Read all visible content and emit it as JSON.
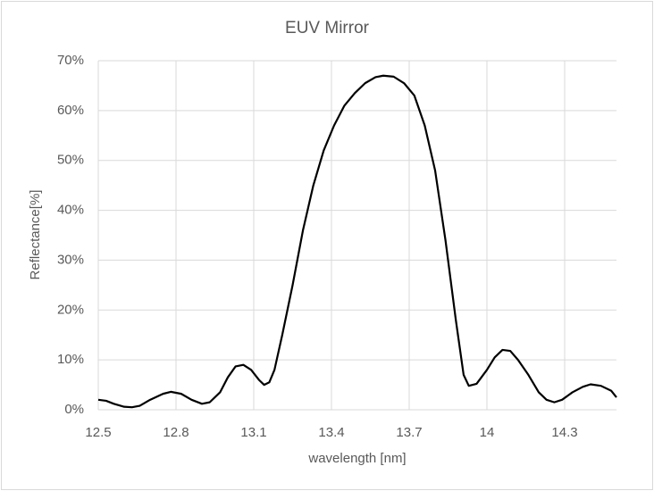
{
  "chart_data": {
    "type": "line",
    "title": "EUV Mirror",
    "x_label": "wavelength [nm]",
    "y_label": "Reflectance[%]",
    "x": [
      12.5,
      12.53,
      12.56,
      12.6,
      12.63,
      12.66,
      12.7,
      12.75,
      12.78,
      12.82,
      12.86,
      12.9,
      12.93,
      12.97,
      13.0,
      13.03,
      13.06,
      13.09,
      13.12,
      13.14,
      13.16,
      13.18,
      13.21,
      13.25,
      13.29,
      13.33,
      13.37,
      13.41,
      13.45,
      13.49,
      13.53,
      13.57,
      13.6,
      13.64,
      13.68,
      13.72,
      13.76,
      13.8,
      13.84,
      13.88,
      13.91,
      13.93,
      13.96,
      14.0,
      14.03,
      14.06,
      14.09,
      14.12,
      14.16,
      14.2,
      14.23,
      14.26,
      14.29,
      14.33,
      14.37,
      14.4,
      14.44,
      14.48,
      14.5
    ],
    "series": [
      {
        "name": "Reflectance",
        "color": "#000000",
        "values": [
          2,
          1.8,
          1.2,
          0.6,
          0.5,
          0.8,
          2,
          3.2,
          3.6,
          3.2,
          2,
          1.2,
          1.5,
          3.5,
          6.5,
          8.7,
          9,
          8,
          6,
          5,
          5.5,
          8,
          15,
          25,
          36,
          45,
          52,
          57,
          61,
          63.5,
          65.5,
          66.7,
          67,
          66.8,
          65.5,
          63,
          57,
          48,
          34,
          18,
          7,
          4.8,
          5.2,
          8,
          10.5,
          12,
          11.8,
          10,
          7,
          3.5,
          2,
          1.5,
          2,
          3.5,
          4.6,
          5.1,
          4.8,
          3.8,
          2.5
        ]
      }
    ],
    "xlim": [
      12.5,
      14.5
    ],
    "xticks": [
      12.5,
      12.8,
      13.1,
      13.4,
      13.7,
      14,
      14.3
    ],
    "ylim": [
      0,
      70
    ],
    "yticks": [
      {
        "value": 0,
        "label": "0%"
      },
      {
        "value": 10,
        "label": "10%"
      },
      {
        "value": 20,
        "label": "20%"
      },
      {
        "value": 30,
        "label": "30%"
      },
      {
        "value": 40,
        "label": "40%"
      },
      {
        "value": 50,
        "label": "50%"
      },
      {
        "value": 60,
        "label": "60%"
      },
      {
        "value": 70,
        "label": "70%"
      }
    ],
    "grid": true
  }
}
